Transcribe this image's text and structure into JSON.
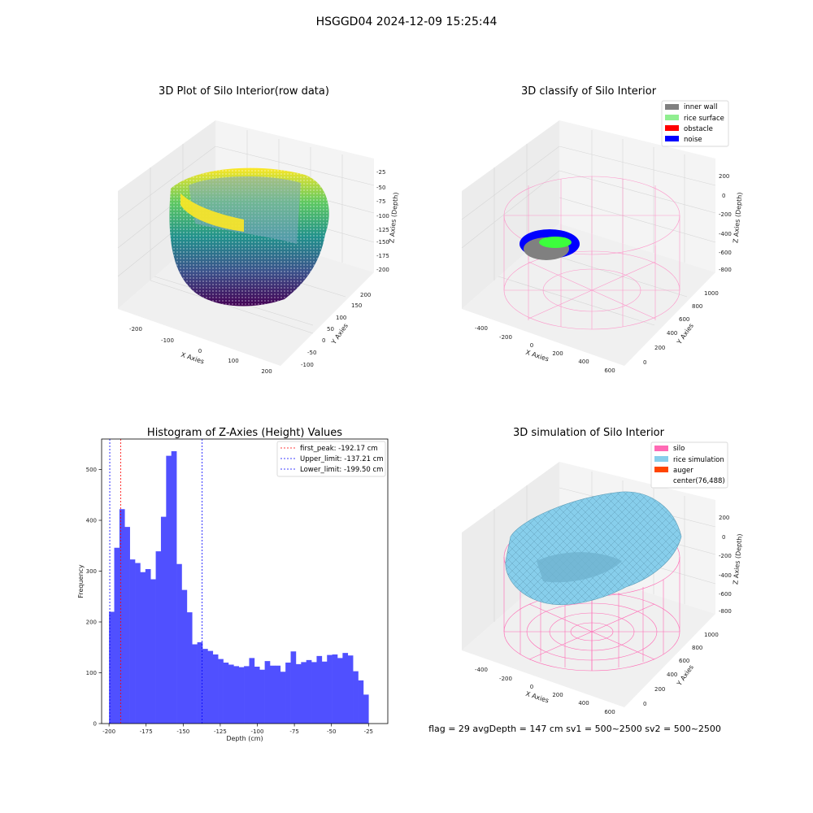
{
  "suptitle": "HSGGD04 2024-12-09 15:25:44",
  "footer": "flag = 29  avgDepth = 147 cm  sv1 = 500~2500  sv2 = 500~2500",
  "chart_data": [
    {
      "type": "scatter3d",
      "title": "3D Plot of Silo Interior(row data)",
      "xlabel": "X Axies",
      "ylabel": "Y Axies",
      "zlabel": "Z Axies (Depth)",
      "x_ticks": [
        "-200",
        "-100",
        "0",
        "100",
        "200"
      ],
      "y_ticks": [
        "-100",
        "-50",
        "0",
        "50",
        "100",
        "150",
        "200"
      ],
      "z_ticks": [
        "-25",
        "-50",
        "-75",
        "-100",
        "-125",
        "-150",
        "-175",
        "-200"
      ],
      "colormap": "viridis"
    },
    {
      "type": "scatter3d",
      "title": "3D classify of Silo Interior",
      "xlabel": "X Axies",
      "ylabel": "Y Axies",
      "zlabel": "Z Axies (Depth)",
      "x_ticks": [
        "-400",
        "-200",
        "0",
        "200",
        "400",
        "600"
      ],
      "y_ticks": [
        "0",
        "200",
        "400",
        "600",
        "800",
        "1000"
      ],
      "z_ticks": [
        "200",
        "0",
        "-200",
        "-400",
        "-600",
        "-800"
      ],
      "legend_position": "top-right",
      "legend": [
        {
          "label": "inner wall",
          "color": "#808080"
        },
        {
          "label": "rice surface",
          "color": "#90ee90"
        },
        {
          "label": "obstacle",
          "color": "#ff0000"
        },
        {
          "label": "noise",
          "color": "#0000ff"
        }
      ]
    },
    {
      "type": "bar",
      "title": "Histogram of Z-Axies (Height) Values",
      "xlabel": "Depth (cm)",
      "ylabel": "Frequency",
      "bar_color": "#5050ff",
      "bin_start": -200,
      "bin_width": 3.5,
      "values": [
        220,
        346,
        422,
        387,
        323,
        316,
        298,
        304,
        284,
        339,
        407,
        527,
        536,
        314,
        263,
        219,
        156,
        160,
        147,
        143,
        136,
        127,
        120,
        116,
        113,
        111,
        113,
        129,
        112,
        106,
        123,
        114,
        114,
        102,
        120,
        142,
        117,
        121,
        125,
        121,
        133,
        122,
        135,
        136,
        129,
        139,
        134,
        103,
        85,
        57
      ],
      "xlim": [
        -205,
        -12
      ],
      "ylim": [
        0,
        560
      ],
      "x_ticks": [
        -200,
        -175,
        -150,
        -125,
        -100,
        -75,
        -50,
        -25
      ],
      "y_ticks": [
        0,
        100,
        200,
        300,
        400,
        500
      ],
      "legend_position": "top-right",
      "vlines": [
        {
          "label": "first_peak: -192.17 cm",
          "x": -192.17,
          "color": "#ff0000"
        },
        {
          "label": "Upper_limit: -137.21 cm",
          "x": -137.21,
          "color": "#0000ff"
        },
        {
          "label": "Lower_limit: -199.50 cm",
          "x": -199.5,
          "color": "#0000ff"
        }
      ]
    },
    {
      "type": "surface3d",
      "title": "3D simulation of Silo Interior",
      "xlabel": "X Axies",
      "ylabel": "Y Axies",
      "zlabel": "Z Axies (Depth)",
      "x_ticks": [
        "-400",
        "-200",
        "0",
        "200",
        "400",
        "600"
      ],
      "y_ticks": [
        "0",
        "200",
        "400",
        "600",
        "800",
        "1000"
      ],
      "z_ticks": [
        "200",
        "0",
        "-200",
        "-400",
        "-600",
        "-800"
      ],
      "legend_position": "top-right",
      "legend": [
        {
          "label": "silo",
          "color": "#ff69b4"
        },
        {
          "label": "rice simulation",
          "color": "#87ceeb"
        },
        {
          "label": "auger",
          "color": "#ff4500"
        },
        {
          "label": "center(76,488)",
          "color": "none"
        }
      ]
    }
  ]
}
